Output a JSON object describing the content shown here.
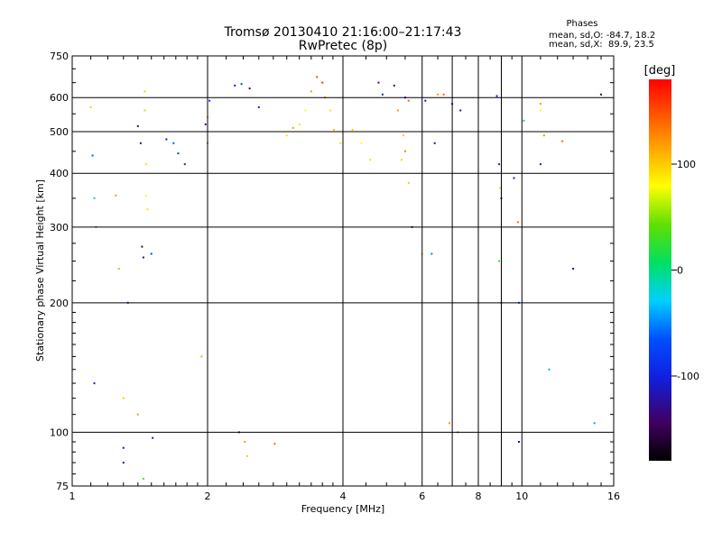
{
  "chart_data": {
    "type": "scatter",
    "title": "Tromsø 20130410 21:16:00–21:17:43",
    "subtitle": "RwPretec (8p)",
    "stats": {
      "heading": "Phases",
      "line1": "mean, sd,O: -84.7, 18.2",
      "line2": "mean, sd,X:  89.9, 23.5"
    },
    "xlabel": "Frequency [MHz]",
    "ylabel": "Stationary phase Virtual Height [km]",
    "x_scale": "log",
    "y_scale": "log",
    "xlim": [
      1,
      16
    ],
    "ylim": [
      75,
      750
    ],
    "x_ticks": [
      1,
      2,
      4,
      6,
      8,
      10,
      16
    ],
    "x_tick_labels": [
      "1",
      "2",
      "4",
      "6",
      "8",
      "10",
      "16"
    ],
    "x_grid": [
      2,
      4,
      6,
      7,
      8,
      9,
      10
    ],
    "y_ticks": [
      75,
      100,
      200,
      300,
      400,
      500,
      600,
      750
    ],
    "y_tick_labels": [
      "75",
      "100",
      "200",
      "300",
      "400",
      "500",
      "600",
      "750"
    ],
    "y_grid": [
      100,
      200,
      300,
      400,
      500,
      600
    ],
    "colorbar": {
      "label": "[deg]",
      "range": [
        -180,
        180
      ],
      "ticks": [
        100,
        0,
        -100
      ],
      "tick_labels": [
        "100",
        "0",
        "-100"
      ]
    },
    "series": [
      {
        "points": [
          [
            1.1,
            570,
            100
          ],
          [
            1.11,
            440,
            -60
          ],
          [
            1.12,
            350,
            -20
          ],
          [
            1.13,
            300,
            -30
          ],
          [
            1.12,
            130,
            -100
          ],
          [
            1.25,
            355,
            120
          ],
          [
            1.27,
            240,
            110
          ],
          [
            1.3,
            92,
            -120
          ],
          [
            1.3,
            85,
            -110
          ],
          [
            1.3,
            120,
            100
          ],
          [
            1.33,
            200,
            -80
          ],
          [
            1.4,
            515,
            -140
          ],
          [
            1.42,
            470,
            -130
          ],
          [
            1.45,
            620,
            60
          ],
          [
            1.45,
            560,
            60
          ],
          [
            1.46,
            420,
            90
          ],
          [
            1.46,
            355,
            80
          ],
          [
            1.47,
            330,
            90
          ],
          [
            1.43,
            270,
            -140
          ],
          [
            1.44,
            255,
            -120
          ],
          [
            1.44,
            78,
            40
          ],
          [
            1.51,
            97,
            -120
          ],
          [
            1.5,
            260,
            -80
          ],
          [
            1.4,
            110,
            120
          ],
          [
            1.62,
            480,
            -120
          ],
          [
            1.68,
            470,
            -60
          ],
          [
            1.72,
            445,
            -80
          ],
          [
            1.78,
            420,
            -90
          ],
          [
            1.98,
            520,
            -130
          ],
          [
            2.0,
            540,
            110
          ],
          [
            2.02,
            590,
            -80
          ],
          [
            1.94,
            150,
            110
          ],
          [
            2.3,
            640,
            -110
          ],
          [
            2.38,
            645,
            -80
          ],
          [
            2.48,
            630,
            -130
          ],
          [
            2.6,
            570,
            -110
          ],
          [
            2.35,
            100,
            -110
          ],
          [
            2.42,
            95,
            120
          ],
          [
            2.45,
            88,
            100
          ],
          [
            2.82,
            94,
            140
          ],
          [
            3.0,
            490,
            90
          ],
          [
            3.1,
            510,
            120
          ],
          [
            3.2,
            520,
            90
          ],
          [
            3.3,
            560,
            80
          ],
          [
            3.4,
            620,
            120
          ],
          [
            3.5,
            670,
            150
          ],
          [
            3.6,
            650,
            160
          ],
          [
            3.65,
            600,
            130
          ],
          [
            3.75,
            560,
            90
          ],
          [
            3.82,
            505,
            100
          ],
          [
            3.95,
            470,
            90
          ],
          [
            4.2,
            505,
            100
          ],
          [
            4.4,
            470,
            80
          ],
          [
            4.6,
            430,
            90
          ],
          [
            4.8,
            650,
            -130
          ],
          [
            4.9,
            610,
            -100
          ],
          [
            5.2,
            640,
            -130
          ],
          [
            5.5,
            600,
            -110
          ],
          [
            5.6,
            590,
            140
          ],
          [
            5.3,
            560,
            120
          ],
          [
            5.45,
            490,
            100
          ],
          [
            5.5,
            450,
            130
          ],
          [
            5.4,
            430,
            90
          ],
          [
            5.6,
            380,
            100
          ],
          [
            5.7,
            300,
            -140
          ],
          [
            6.0,
            260,
            60
          ],
          [
            6.3,
            260,
            -50
          ],
          [
            6.5,
            610,
            120
          ],
          [
            6.7,
            610,
            140
          ],
          [
            7.0,
            580,
            -110
          ],
          [
            6.9,
            105,
            120
          ],
          [
            7.2,
            100,
            140
          ],
          [
            6.4,
            470,
            -120
          ],
          [
            6.1,
            590,
            -120
          ],
          [
            7.3,
            560,
            -120
          ],
          [
            8.8,
            605,
            -100
          ],
          [
            8.9,
            420,
            -100
          ],
          [
            8.95,
            370,
            100
          ],
          [
            9.0,
            350,
            -110
          ],
          [
            8.9,
            250,
            20
          ],
          [
            9.0,
            200,
            -70
          ],
          [
            9.8,
            308,
            140
          ],
          [
            9.6,
            390,
            -110
          ],
          [
            9.85,
            200,
            -60
          ],
          [
            9.85,
            95,
            -120
          ],
          [
            10.1,
            530,
            0
          ],
          [
            11.0,
            580,
            120
          ],
          [
            11.0,
            560,
            80
          ],
          [
            11.0,
            420,
            -110
          ],
          [
            11.5,
            140,
            -40
          ],
          [
            12.3,
            475,
            140
          ],
          [
            13.0,
            240,
            -140
          ],
          [
            14.5,
            105,
            -40
          ],
          [
            15.0,
            610,
            -140
          ],
          [
            11.2,
            490,
            40
          ],
          [
            2.0,
            470,
            40
          ]
        ]
      }
    ]
  }
}
